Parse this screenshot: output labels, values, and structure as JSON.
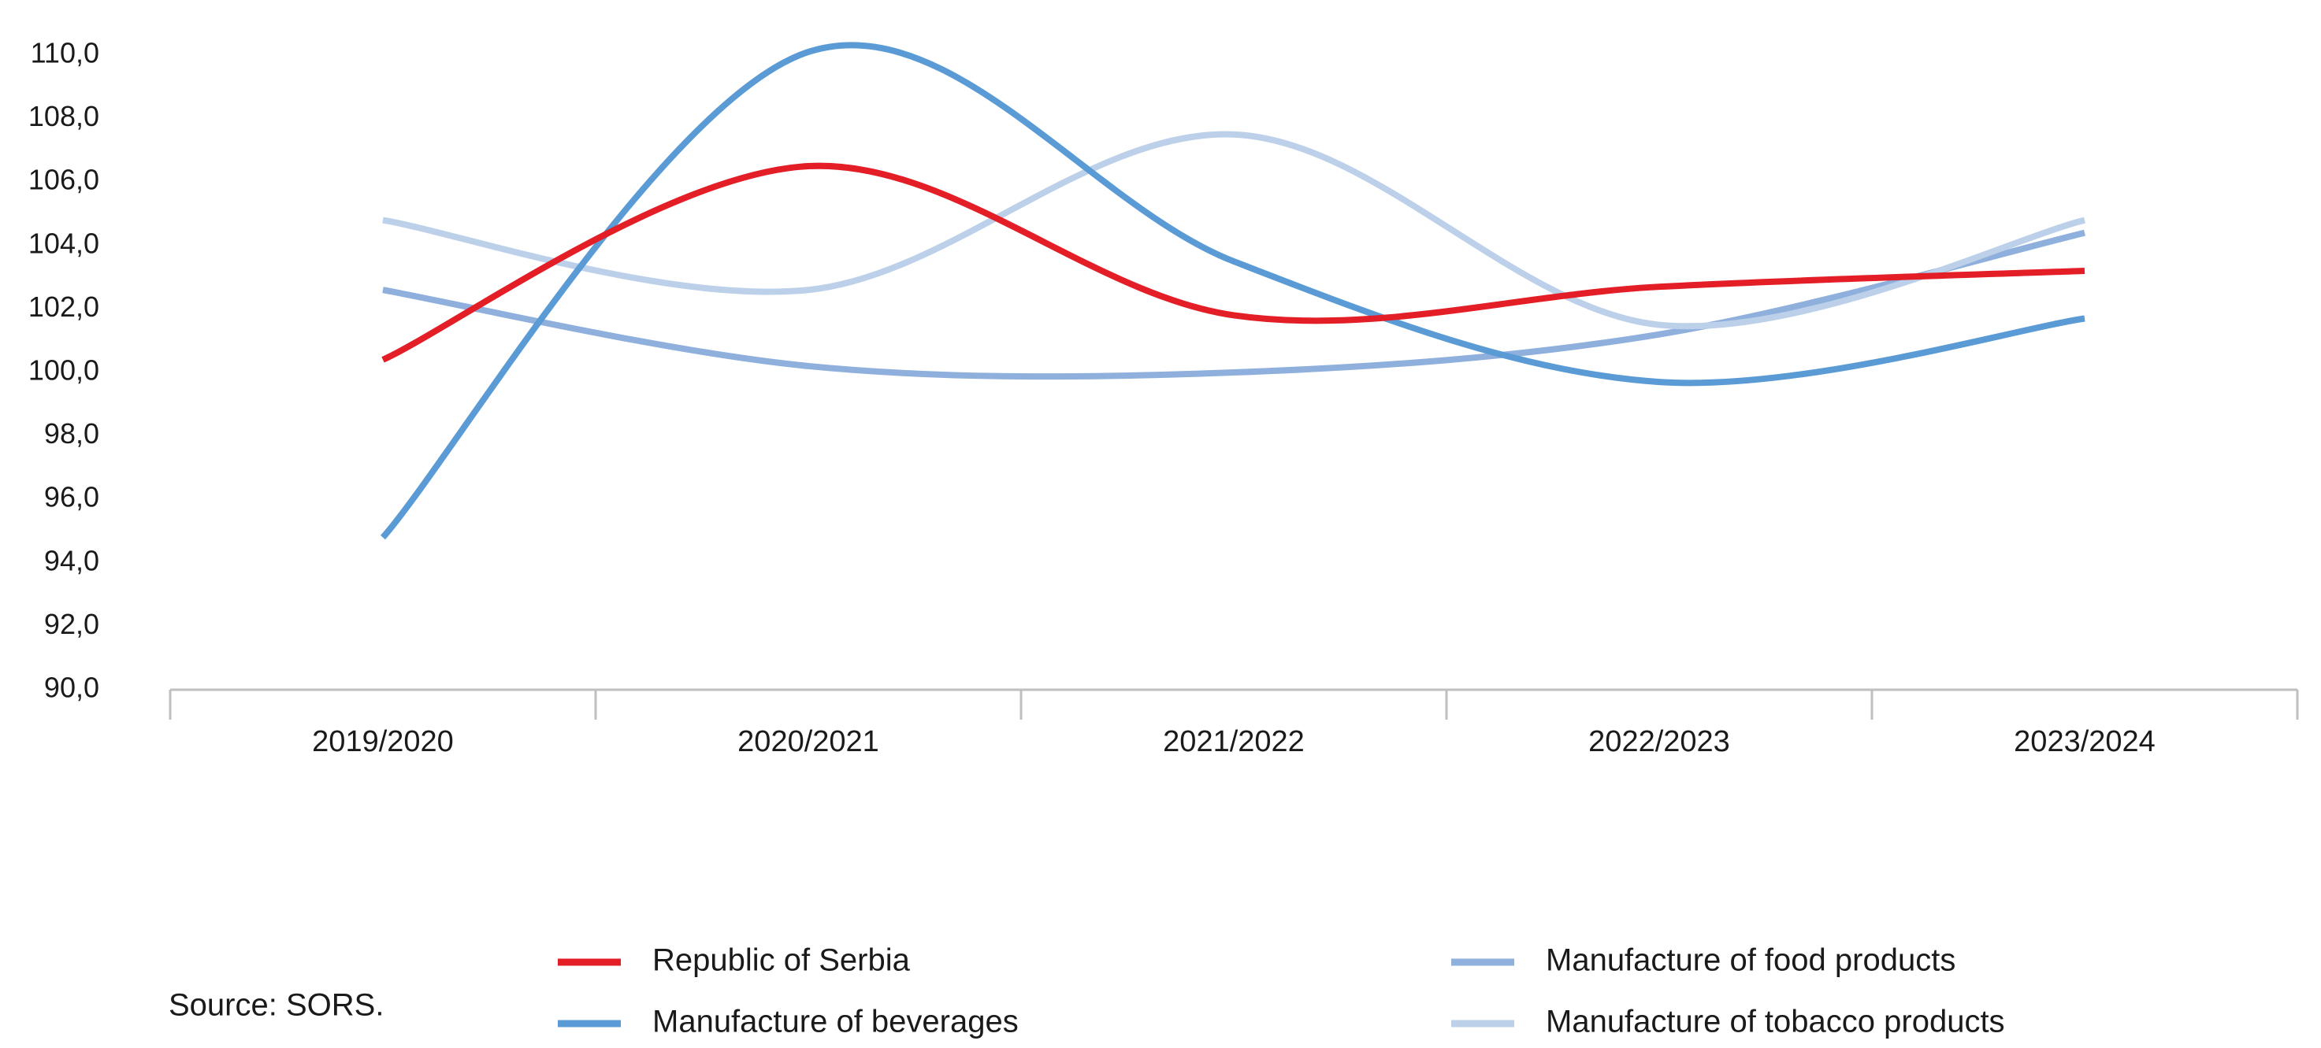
{
  "chart_data": {
    "type": "line",
    "smooth": true,
    "title": "",
    "xlabel": "",
    "ylabel": "",
    "ylim": [
      90,
      110
    ],
    "y_tick_step": 2,
    "y_ticks": [
      "90,0",
      "92,0",
      "94,0",
      "96,0",
      "98,0",
      "100,0",
      "102,0",
      "104,0",
      "106,0",
      "108,0",
      "110,0"
    ],
    "categories": [
      "2019/2020",
      "2020/2021",
      "2021/2022",
      "2022/2023",
      "2023/2024"
    ],
    "grid": false,
    "legend_position": "bottom",
    "series": [
      {
        "name": "Republic of Serbia",
        "color": "#e41e26",
        "values": [
          100.4,
          106.5,
          101.8,
          102.7,
          103.2
        ]
      },
      {
        "name": "Manufacture of beverages",
        "color": "#5b9bd5",
        "values": [
          94.8,
          110.1,
          103.5,
          99.7,
          101.7
        ]
      },
      {
        "name": "Manufacture of food products",
        "color": "#8fb0dc",
        "values": [
          102.6,
          100.2,
          100.0,
          101.2,
          104.4
        ]
      },
      {
        "name": "Manufacture of tobacco products",
        "color": "#bcd0e9",
        "values": [
          104.8,
          102.6,
          107.5,
          101.5,
          104.8
        ]
      }
    ]
  },
  "source": "Source: SORS."
}
